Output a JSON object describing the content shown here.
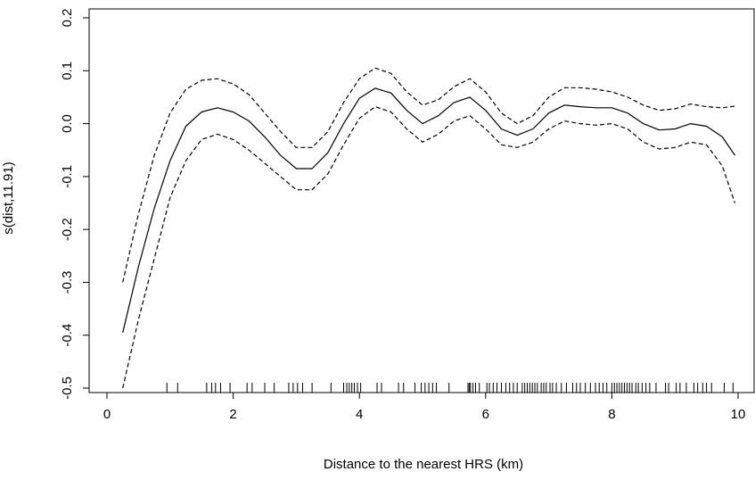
{
  "chart_data": {
    "type": "line",
    "title": "",
    "xlabel": "Distance to the nearest HRS (km)",
    "ylabel": "s(dist,11.91)",
    "xlim": [
      0,
      10
    ],
    "ylim": [
      -0.5,
      0.2
    ],
    "x_ticks": [
      0,
      2,
      4,
      6,
      8,
      10
    ],
    "y_ticks": [
      -0.5,
      -0.4,
      -0.3,
      -0.2,
      -0.1,
      0.0,
      0.1,
      0.2
    ],
    "x_tick_labels": [
      "0",
      "2",
      "4",
      "6",
      "8",
      "10"
    ],
    "y_tick_labels": [
      "-0.5",
      "-0.4",
      "-0.3",
      "-0.2",
      "-0.1",
      "0.0",
      "0.1",
      "0.2"
    ],
    "grid": false,
    "series": [
      {
        "style": "solid",
        "x": [
          0.25,
          0.5,
          0.75,
          1.0,
          1.25,
          1.5,
          1.75,
          2.0,
          2.25,
          2.5,
          2.75,
          3.0,
          3.25,
          3.5,
          3.75,
          4.0,
          4.25,
          4.5,
          4.75,
          5.0,
          5.25,
          5.5,
          5.75,
          6.0,
          6.25,
          6.5,
          6.75,
          7.0,
          7.25,
          7.5,
          7.75,
          8.0,
          8.25,
          8.5,
          8.75,
          9.0,
          9.25,
          9.5,
          9.75,
          9.95
        ],
        "y": [
          -0.395,
          -0.27,
          -0.16,
          -0.07,
          -0.005,
          0.022,
          0.03,
          0.022,
          0.005,
          -0.025,
          -0.06,
          -0.085,
          -0.085,
          -0.055,
          0.0,
          0.048,
          0.067,
          0.058,
          0.025,
          0.0,
          0.015,
          0.04,
          0.05,
          0.025,
          -0.01,
          -0.022,
          -0.01,
          0.02,
          0.035,
          0.032,
          0.03,
          0.03,
          0.02,
          0.0,
          -0.012,
          -0.01,
          0.0,
          -0.005,
          -0.025,
          -0.06
        ]
      },
      {
        "style": "dashed",
        "x": [
          0.25,
          0.5,
          0.75,
          1.0,
          1.25,
          1.5,
          1.75,
          2.0,
          2.25,
          2.5,
          2.75,
          3.0,
          3.25,
          3.5,
          3.75,
          4.0,
          4.25,
          4.5,
          4.75,
          5.0,
          5.25,
          5.5,
          5.75,
          6.0,
          6.25,
          6.5,
          6.75,
          7.0,
          7.25,
          7.5,
          7.75,
          8.0,
          8.25,
          8.5,
          8.75,
          9.0,
          9.25,
          9.5,
          9.75,
          9.95
        ],
        "y": [
          -0.3,
          -0.17,
          -0.06,
          0.02,
          0.065,
          0.082,
          0.085,
          0.075,
          0.055,
          0.02,
          -0.015,
          -0.045,
          -0.045,
          -0.015,
          0.04,
          0.085,
          0.105,
          0.095,
          0.06,
          0.035,
          0.045,
          0.07,
          0.085,
          0.06,
          0.02,
          0.0,
          0.015,
          0.05,
          0.068,
          0.068,
          0.065,
          0.06,
          0.05,
          0.035,
          0.025,
          0.028,
          0.037,
          0.032,
          0.03,
          0.033
        ]
      },
      {
        "style": "dashed",
        "x": [
          0.25,
          0.5,
          0.75,
          1.0,
          1.25,
          1.5,
          1.75,
          2.0,
          2.25,
          2.5,
          2.75,
          3.0,
          3.25,
          3.5,
          3.75,
          4.0,
          4.25,
          4.5,
          4.75,
          5.0,
          5.25,
          5.5,
          5.75,
          6.0,
          6.25,
          6.5,
          6.75,
          7.0,
          7.25,
          7.5,
          7.75,
          8.0,
          8.25,
          8.5,
          8.75,
          9.0,
          9.25,
          9.5,
          9.75,
          9.95
        ],
        "y": [
          -0.5,
          -0.37,
          -0.255,
          -0.14,
          -0.07,
          -0.03,
          -0.02,
          -0.03,
          -0.05,
          -0.075,
          -0.1,
          -0.125,
          -0.125,
          -0.095,
          -0.04,
          0.01,
          0.032,
          0.022,
          -0.01,
          -0.035,
          -0.02,
          0.005,
          0.015,
          -0.01,
          -0.04,
          -0.045,
          -0.035,
          -0.01,
          0.005,
          0.0,
          -0.003,
          0.0,
          -0.01,
          -0.035,
          -0.048,
          -0.045,
          -0.035,
          -0.04,
          -0.08,
          -0.15
        ]
      }
    ],
    "rug": [
      0.95,
      1.12,
      1.58,
      1.66,
      1.72,
      1.8,
      1.95,
      2.22,
      2.3,
      2.5,
      2.65,
      2.88,
      2.95,
      3.02,
      3.1,
      3.25,
      3.55,
      3.75,
      3.8,
      3.84,
      3.88,
      3.92,
      3.97,
      4.02,
      4.28,
      4.35,
      4.62,
      4.7,
      4.88,
      4.98,
      5.04,
      5.1,
      5.16,
      5.22,
      5.42,
      5.72,
      5.74,
      5.76,
      5.8,
      5.84,
      5.9,
      6.02,
      6.06,
      6.12,
      6.18,
      6.25,
      6.32,
      6.38,
      6.44,
      6.5,
      6.58,
      6.62,
      6.66,
      6.7,
      6.74,
      6.78,
      6.82,
      6.88,
      6.92,
      6.96,
      7.02,
      7.06,
      7.12,
      7.2,
      7.28,
      7.38,
      7.44,
      7.5,
      7.58,
      7.66,
      7.74,
      7.8,
      7.86,
      7.92,
      8.0,
      8.04,
      8.08,
      8.12,
      8.16,
      8.2,
      8.24,
      8.28,
      8.32,
      8.38,
      8.42,
      8.48,
      8.54,
      8.6,
      8.7,
      8.85,
      8.9,
      9.02,
      9.08,
      9.18,
      9.3,
      9.36,
      9.44,
      9.5,
      9.58,
      9.78,
      9.92
    ]
  }
}
